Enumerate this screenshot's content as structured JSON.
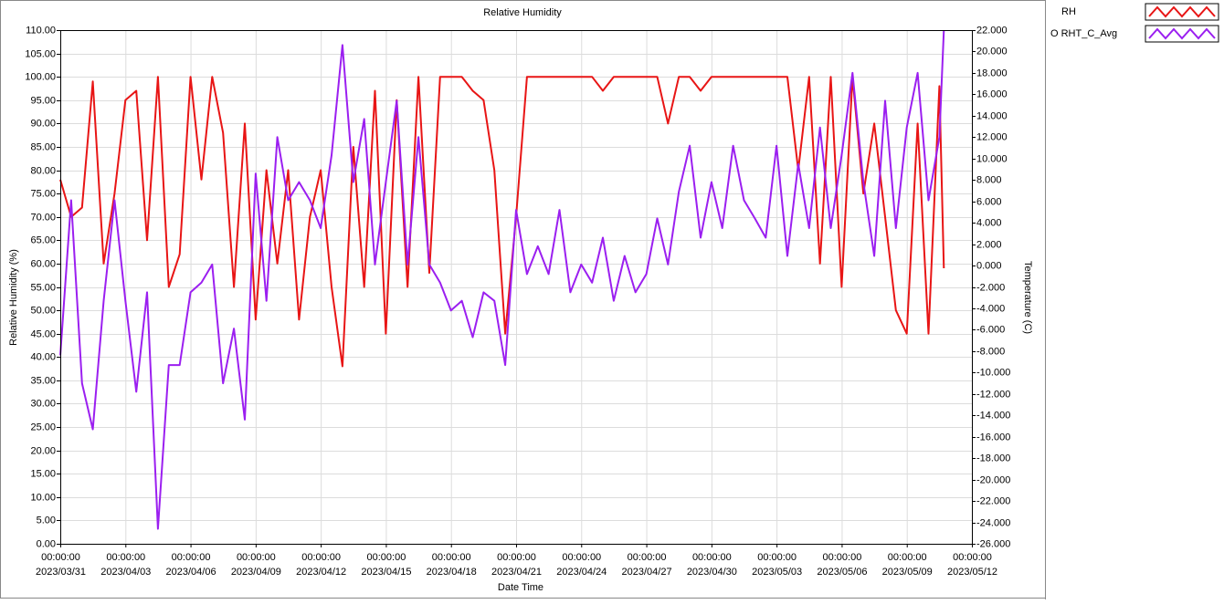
{
  "chart_data": {
    "type": "line",
    "title": "Relative Humidity",
    "xlabel": "Date Time",
    "ylabel": "Relative Humidity (%)",
    "y2label": "Temperature (C)",
    "legend": "upper right",
    "grid": true,
    "xlim": [
      "2023/03/31 00:00:00",
      "2023/05/12 00:00:00"
    ],
    "xticks": [
      {
        "value": "2023/03/31 00:00:00",
        "label": [
          "00:00:00",
          "2023/03/31"
        ]
      },
      {
        "value": "2023/04/03 00:00:00",
        "label": [
          "00:00:00",
          "2023/04/03"
        ]
      },
      {
        "value": "2023/04/06 00:00:00",
        "label": [
          "00:00:00",
          "2023/04/06"
        ]
      },
      {
        "value": "2023/04/09 00:00:00",
        "label": [
          "00:00:00",
          "2023/04/09"
        ]
      },
      {
        "value": "2023/04/12 00:00:00",
        "label": [
          "00:00:00",
          "2023/04/12"
        ]
      },
      {
        "value": "2023/04/15 00:00:00",
        "label": [
          "00:00:00",
          "2023/04/15"
        ]
      },
      {
        "value": "2023/04/18 00:00:00",
        "label": [
          "00:00:00",
          "2023/04/18"
        ]
      },
      {
        "value": "2023/04/21 00:00:00",
        "label": [
          "00:00:00",
          "2023/04/21"
        ]
      },
      {
        "value": "2023/04/24 00:00:00",
        "label": [
          "00:00:00",
          "2023/04/24"
        ]
      },
      {
        "value": "2023/04/27 00:00:00",
        "label": [
          "00:00:00",
          "2023/04/27"
        ]
      },
      {
        "value": "2023/04/30 00:00:00",
        "label": [
          "00:00:00",
          "2023/04/30"
        ]
      },
      {
        "value": "2023/05/03 00:00:00",
        "label": [
          "00:00:00",
          "2023/05/03"
        ]
      },
      {
        "value": "2023/05/06 00:00:00",
        "label": [
          "00:00:00",
          "2023/05/06"
        ]
      },
      {
        "value": "2023/05/09 00:00:00",
        "label": [
          "00:00:00",
          "2023/05/09"
        ]
      },
      {
        "value": "2023/05/12 00:00:00",
        "label": [
          "00:00:00",
          "2023/05/12"
        ]
      }
    ],
    "ylim": [
      0,
      110
    ],
    "yticks": [
      {
        "value": 0,
        "label": "0.00"
      },
      {
        "value": 5,
        "label": "5.00"
      },
      {
        "value": 10,
        "label": "10.00"
      },
      {
        "value": 15,
        "label": "15.00"
      },
      {
        "value": 20,
        "label": "20.00"
      },
      {
        "value": 25,
        "label": "25.00"
      },
      {
        "value": 30,
        "label": "30.00"
      },
      {
        "value": 35,
        "label": "35.00"
      },
      {
        "value": 40,
        "label": "40.00"
      },
      {
        "value": 45,
        "label": "45.00"
      },
      {
        "value": 50,
        "label": "50.00"
      },
      {
        "value": 55,
        "label": "55.00"
      },
      {
        "value": 60,
        "label": "60.00"
      },
      {
        "value": 65,
        "label": "65.00"
      },
      {
        "value": 70,
        "label": "70.00"
      },
      {
        "value": 75,
        "label": "75.00"
      },
      {
        "value": 80,
        "label": "80.00"
      },
      {
        "value": 85,
        "label": "85.00"
      },
      {
        "value": 90,
        "label": "90.00"
      },
      {
        "value": 95,
        "label": "95.00"
      },
      {
        "value": 100,
        "label": "100.00"
      },
      {
        "value": 105,
        "label": "105.00"
      },
      {
        "value": 110,
        "label": "110.00"
      }
    ],
    "y2lim": [
      -26,
      22
    ],
    "y2ticks": [
      {
        "value": -26,
        "label": "-26.000"
      },
      {
        "value": -24,
        "label": "-24.000"
      },
      {
        "value": -22,
        "label": "-22.000"
      },
      {
        "value": -20,
        "label": "-20.000"
      },
      {
        "value": -18,
        "label": "-18.000"
      },
      {
        "value": -16,
        "label": "-16.000"
      },
      {
        "value": -14,
        "label": "-14.000"
      },
      {
        "value": -12,
        "label": "-12.000"
      },
      {
        "value": -10,
        "label": "-10.000"
      },
      {
        "value": -8,
        "label": "-8.000"
      },
      {
        "value": -6,
        "label": "-6.000"
      },
      {
        "value": -4,
        "label": "-4.000"
      },
      {
        "value": -2,
        "label": "-2.000"
      },
      {
        "value": 0,
        "label": "0.000"
      },
      {
        "value": 2,
        "label": "2.000"
      },
      {
        "value": 4,
        "label": "4.000"
      },
      {
        "value": 6,
        "label": "6.000"
      },
      {
        "value": 8,
        "label": "8.000"
      },
      {
        "value": 10,
        "label": "10.000"
      },
      {
        "value": 12,
        "label": "12.000"
      },
      {
        "value": 14,
        "label": "14.000"
      },
      {
        "value": 16,
        "label": "16.000"
      },
      {
        "value": 18,
        "label": "18.000"
      },
      {
        "value": 20,
        "label": "20.000"
      },
      {
        "value": 22,
        "label": "22.000"
      }
    ],
    "x": [
      "2023/03/31 00:00:00",
      "2023/03/31 12:00:00",
      "2023/04/01 00:00:00",
      "2023/04/01 12:00:00",
      "2023/04/02 00:00:00",
      "2023/04/02 12:00:00",
      "2023/04/03 00:00:00",
      "2023/04/03 12:00:00",
      "2023/04/04 00:00:00",
      "2023/04/04 12:00:00",
      "2023/04/05 00:00:00",
      "2023/04/05 12:00:00",
      "2023/04/06 00:00:00",
      "2023/04/06 12:00:00",
      "2023/04/07 00:00:00",
      "2023/04/07 12:00:00",
      "2023/04/08 00:00:00",
      "2023/04/08 12:00:00",
      "2023/04/09 00:00:00",
      "2023/04/09 12:00:00",
      "2023/04/10 00:00:00",
      "2023/04/10 12:00:00",
      "2023/04/11 00:00:00",
      "2023/04/11 12:00:00",
      "2023/04/12 00:00:00",
      "2023/04/12 12:00:00",
      "2023/04/13 00:00:00",
      "2023/04/13 12:00:00",
      "2023/04/14 00:00:00",
      "2023/04/14 12:00:00",
      "2023/04/15 00:00:00",
      "2023/04/15 12:00:00",
      "2023/04/16 00:00:00",
      "2023/04/16 12:00:00",
      "2023/04/17 00:00:00",
      "2023/04/17 12:00:00",
      "2023/04/18 00:00:00",
      "2023/04/18 12:00:00",
      "2023/04/19 00:00:00",
      "2023/04/19 12:00:00",
      "2023/04/20 00:00:00",
      "2023/04/20 12:00:00",
      "2023/04/21 00:00:00",
      "2023/04/21 12:00:00",
      "2023/04/22 00:00:00",
      "2023/04/22 12:00:00",
      "2023/04/23 00:00:00",
      "2023/04/23 12:00:00",
      "2023/04/24 00:00:00",
      "2023/04/24 12:00:00",
      "2023/04/25 00:00:00",
      "2023/04/25 12:00:00",
      "2023/04/26 00:00:00",
      "2023/04/26 12:00:00",
      "2023/04/27 00:00:00",
      "2023/04/27 12:00:00",
      "2023/04/28 00:00:00",
      "2023/04/28 12:00:00",
      "2023/04/29 00:00:00",
      "2023/04/29 12:00:00",
      "2023/04/30 00:00:00",
      "2023/04/30 12:00:00",
      "2023/05/01 00:00:00",
      "2023/05/01 12:00:00",
      "2023/05/02 00:00:00",
      "2023/05/02 12:00:00",
      "2023/05/03 00:00:00",
      "2023/05/03 12:00:00",
      "2023/05/04 00:00:00",
      "2023/05/04 12:00:00",
      "2023/05/05 00:00:00",
      "2023/05/05 12:00:00",
      "2023/05/06 00:00:00",
      "2023/05/06 12:00:00",
      "2023/05/07 00:00:00",
      "2023/05/07 12:00:00",
      "2023/05/08 00:00:00",
      "2023/05/08 12:00:00",
      "2023/05/09 00:00:00",
      "2023/05/09 12:00:00",
      "2023/05/10 00:00:00",
      "2023/05/10 12:00:00",
      "2023/05/10 17:00:00"
    ],
    "series": [
      {
        "name": "RH",
        "color": "#e81515",
        "values": [
          78,
          70,
          72,
          99,
          60,
          75,
          95,
          97,
          65,
          100,
          55,
          62,
          100,
          78,
          100,
          88,
          55,
          90,
          48,
          80,
          60,
          80,
          48,
          70,
          80,
          55,
          38,
          85,
          55,
          97,
          45,
          95,
          55,
          100,
          58,
          100,
          100,
          100,
          97,
          95,
          80,
          45,
          70,
          100,
          100,
          100,
          100,
          100,
          100,
          100,
          97,
          100,
          100,
          100,
          100,
          100,
          90,
          100,
          100,
          97,
          100,
          100,
          100,
          100,
          100,
          100,
          100,
          100,
          80,
          100,
          60,
          100,
          55,
          100,
          75,
          90,
          70,
          50,
          45,
          90,
          45,
          98,
          59
        ]
      },
      {
        "name": "O RHT_C_Avg",
        "color": "#9b1ff0",
        "axis": "y2",
        "values": [
          -8.4,
          6.1,
          -11.0,
          -15.3,
          -3.3,
          6.1,
          -3.3,
          -11.8,
          -2.5,
          -24.6,
          -9.3,
          -9.3,
          -2.5,
          -1.6,
          0.1,
          -11.0,
          -5.9,
          -14.4,
          8.6,
          -3.3,
          12.0,
          6.1,
          7.8,
          6.1,
          3.5,
          10.3,
          20.6,
          7.8,
          13.7,
          0.1,
          7.8,
          15.4,
          0.1,
          12.0,
          0.1,
          -1.6,
          -4.2,
          -3.3,
          -6.7,
          -2.5,
          -3.3,
          -9.3,
          5.2,
          -0.8,
          1.8,
          -0.8,
          5.2,
          -2.5,
          0.1,
          -1.6,
          2.6,
          -3.3,
          0.9,
          -2.5,
          -0.8,
          4.4,
          0.1,
          6.9,
          11.2,
          2.6,
          7.8,
          3.5,
          11.2,
          6.1,
          4.4,
          2.6,
          11.2,
          0.9,
          9.5,
          3.5,
          12.9,
          3.5,
          10.3,
          18.0,
          7.8,
          0.9,
          15.4,
          3.5,
          12.9,
          18.0,
          6.1,
          12.0,
          22.0
        ]
      }
    ]
  }
}
